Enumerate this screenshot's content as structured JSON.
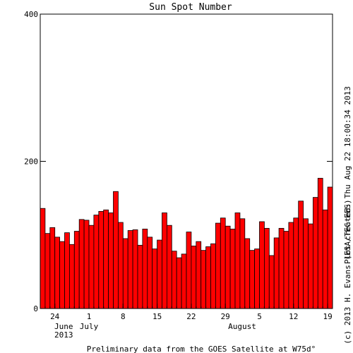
{
  "chart_data": {
    "type": "bar",
    "title": "Sun Spot Number",
    "categories": [
      null,
      null,
      null,
      "24",
      null,
      null,
      null,
      null,
      null,
      null,
      "1",
      null,
      null,
      null,
      null,
      null,
      null,
      "8",
      null,
      null,
      null,
      null,
      null,
      null,
      "15",
      null,
      null,
      null,
      null,
      null,
      null,
      "22",
      null,
      null,
      null,
      null,
      null,
      null,
      "29",
      null,
      null,
      null,
      null,
      null,
      null,
      "5",
      null,
      null,
      null,
      null,
      null,
      null,
      "12",
      null,
      null,
      null,
      null,
      null,
      null,
      "19"
    ],
    "values": [
      136,
      102,
      110,
      97,
      91,
      103,
      87,
      105,
      121,
      120,
      113,
      127,
      132,
      134,
      130,
      159,
      117,
      95,
      106,
      107,
      86,
      108,
      97,
      81,
      93,
      130,
      113,
      78,
      69,
      74,
      104,
      85,
      91,
      79,
      84,
      88,
      116,
      123,
      112,
      108,
      130,
      122,
      95,
      79,
      81,
      118,
      109,
      72,
      96,
      109,
      105,
      117,
      123,
      146,
      122,
      115,
      151,
      177,
      134,
      165
    ],
    "color": "#ff0000",
    "ylim": [
      0,
      400
    ],
    "yticks": [
      0,
      200,
      400
    ],
    "month_labels": [
      "June",
      "July",
      "August"
    ],
    "year_label": "2013",
    "footer": "Preliminary data from the GOES Satellite at W75d°",
    "right_note": "Plot created: Thu Aug 22 18:00:34 2013",
    "copyright": "(c) 2013 H. Evans (ESA/TEC-EES)"
  }
}
